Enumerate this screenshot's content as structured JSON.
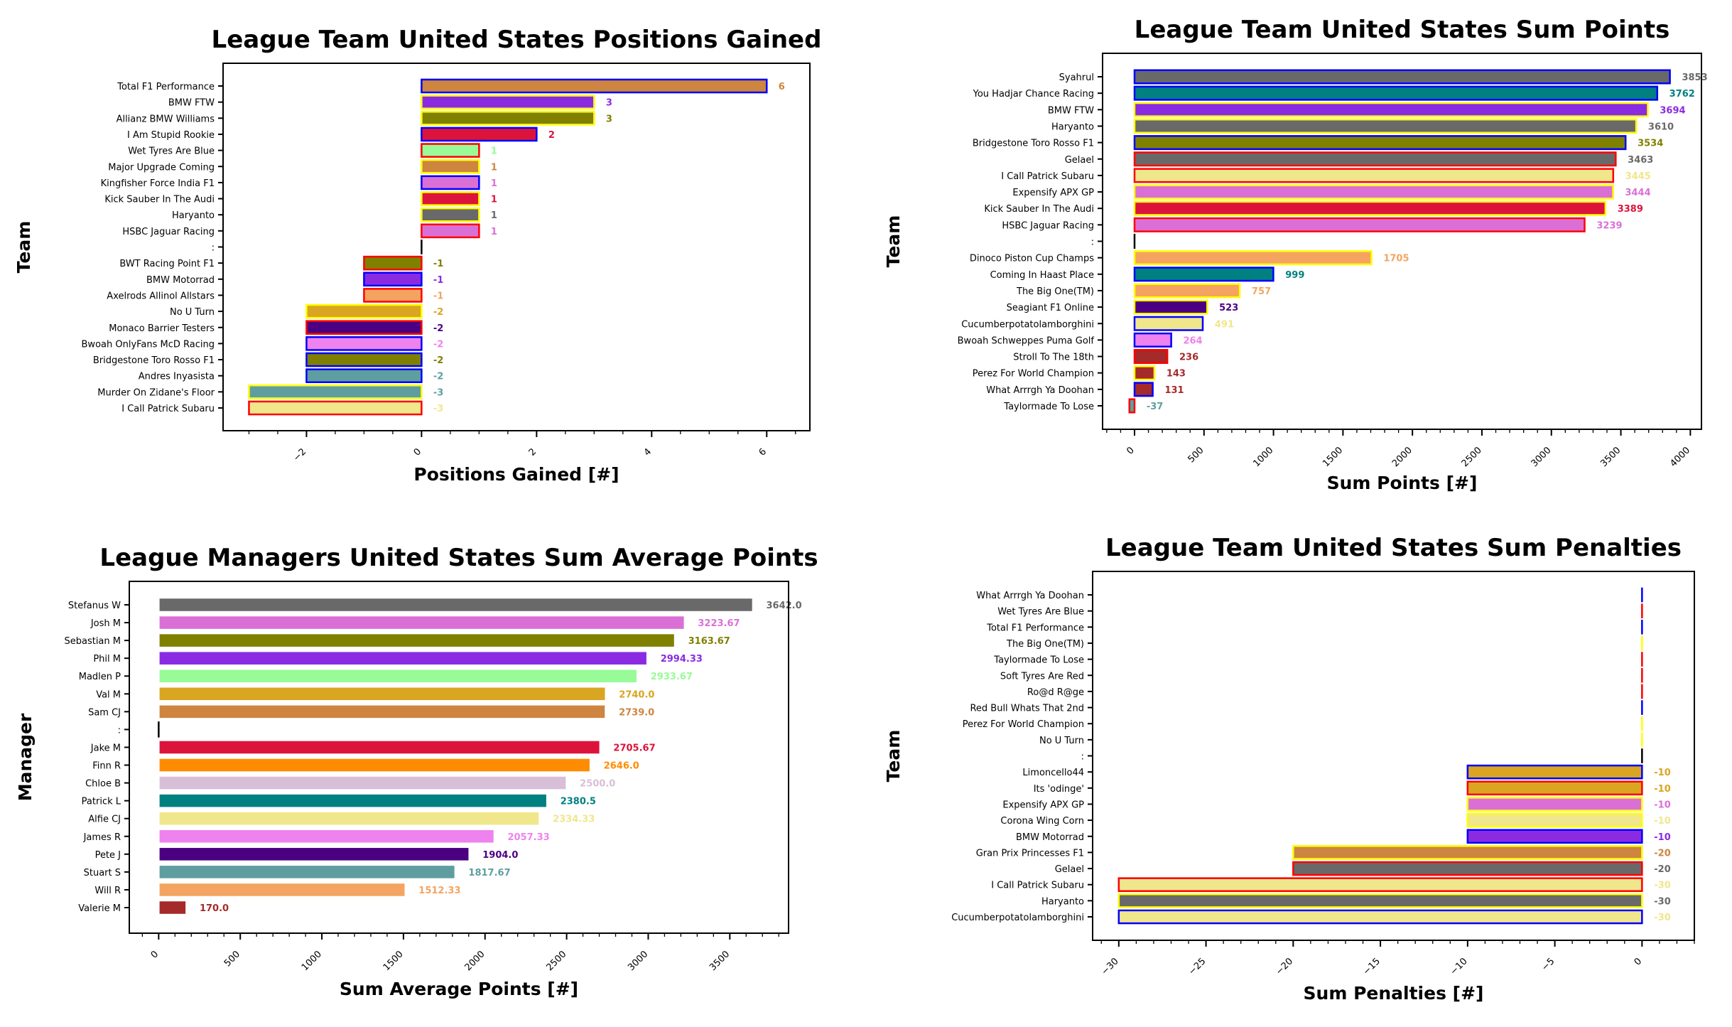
{
  "chart_data": [
    {
      "type": "bar",
      "orientation": "horizontal",
      "title": "League Team United States Positions Gained",
      "xlabel": "Positions Gained [#]",
      "ylabel": "Team",
      "xlim": [
        -3.45,
        6.75
      ],
      "xticks": [
        "−2",
        "0",
        "2",
        "4",
        "6"
      ],
      "xtick_values": [
        -2,
        0,
        2,
        4,
        6
      ],
      "grid": false,
      "categories": [
        "Total F1 Performance",
        "BMW FTW",
        "Allianz BMW Williams",
        "I Am Stupid Rookie",
        "Wet Tyres Are Blue",
        "Major Upgrade Coming",
        "Kingfisher Force India F1",
        "Kick Sauber In The Audi",
        "Haryanto",
        "HSBC Jaguar Racing",
        ":",
        "BWT Racing Point F1",
        "BMW Motorrad",
        "Axelrods Allinol Allstars",
        "No U Turn",
        "Monaco Barrier Testers",
        "Bwoah OnlyFans McD Racing",
        "Bridgestone Toro Rosso F1",
        "Andres Inyasista",
        "Murder On Zidane's Floor",
        "I Call Patrick Subaru"
      ],
      "values": [
        6,
        3,
        3,
        2,
        1,
        1,
        1,
        1,
        1,
        1,
        0,
        -1,
        -1,
        -1,
        -2,
        -2,
        -2,
        -2,
        -2,
        -3,
        -3
      ],
      "value_labels": [
        "6",
        "3",
        "3",
        "2",
        "1",
        "1",
        "1",
        "1",
        "1",
        "1",
        "",
        "-1",
        "-1",
        "-1",
        "-2",
        "-2",
        "-2",
        "-2",
        "-2",
        "-3",
        "-3"
      ],
      "colors": [
        "#cd853f",
        "#8a2be2",
        "#808000",
        "#dc143c",
        "#98fb98",
        "#cd853f",
        "#da70d6",
        "#dc143c",
        "#696969",
        "#da70d6",
        "#000000",
        "#808000",
        "#8a2be2",
        "#f4a460",
        "#daa520",
        "#4b0082",
        "#ee82ee",
        "#808000",
        "#5f9ea0",
        "#5f9ea0",
        "#f0e68c"
      ],
      "edgecolors": [
        "#0000ff",
        "#ffff00",
        "#ffff00",
        "#0000ff",
        "#ff0000",
        "#ffff00",
        "#0000ff",
        "#ffff00",
        "#ffff00",
        "#ff0000",
        "#000000",
        "#ff0000",
        "#0000ff",
        "#ff0000",
        "#ffff00",
        "#ff0000",
        "#0000ff",
        "#0000ff",
        "#0000ff",
        "#ffff00",
        "#ff0000"
      ]
    },
    {
      "type": "bar",
      "orientation": "horizontal",
      "title": "League Team United States Sum Points",
      "xlabel": "Sum Points [#]",
      "ylabel": "Team",
      "xlim": [
        -230,
        4080
      ],
      "xticks": [
        "0",
        "500",
        "1000",
        "1500",
        "2000",
        "2500",
        "3000",
        "3500",
        "4000"
      ],
      "xtick_values": [
        0,
        500,
        1000,
        1500,
        2000,
        2500,
        3000,
        3500,
        4000
      ],
      "grid": false,
      "categories": [
        "Syahrul",
        "You Hadjar Chance Racing",
        "BMW FTW",
        "Haryanto",
        "Bridgestone Toro Rosso F1",
        "Gelael",
        "I Call Patrick Subaru",
        "Expensify APX GP",
        "Kick Sauber In The Audi",
        "HSBC Jaguar Racing",
        ":",
        "Dinoco Piston Cup Champs",
        "Coming In Haast Place",
        "The Big One(TM)",
        "Seagiant F1 Online",
        "Cucumberpotatolamborghini",
        "Bwoah Schweppes Puma Golf",
        "Stroll To The 18th",
        "Perez For World Champion",
        "What Arrrgh Ya Doohan",
        "Taylormade To Lose"
      ],
      "values": [
        3853,
        3762,
        3694,
        3610,
        3534,
        3463,
        3445,
        3444,
        3389,
        3239,
        0,
        1705,
        999,
        757,
        523,
        491,
        264,
        236,
        143,
        131,
        -37
      ],
      "value_labels": [
        "3853",
        "3762",
        "3694",
        "3610",
        "3534",
        "3463",
        "3445",
        "3444",
        "3389",
        "3239",
        "",
        "1705",
        "999",
        "757",
        "523",
        "491",
        "264",
        "236",
        "143",
        "131",
        "-37"
      ],
      "colors": [
        "#696969",
        "#008080",
        "#8a2be2",
        "#696969",
        "#808000",
        "#696969",
        "#f0e68c",
        "#da70d6",
        "#dc143c",
        "#da70d6",
        "#000000",
        "#f4a460",
        "#008080",
        "#f4a460",
        "#4b0082",
        "#f0e68c",
        "#ee82ee",
        "#a52a2a",
        "#a52a2a",
        "#a52a2a",
        "#5f9ea0"
      ],
      "edgecolors": [
        "#0000ff",
        "#0000ff",
        "#ffff00",
        "#ffff00",
        "#0000ff",
        "#ff0000",
        "#ff0000",
        "#ffff00",
        "#ffff00",
        "#ff0000",
        "#000000",
        "#ffff00",
        "#0000ff",
        "#ffff00",
        "#ffff00",
        "#0000ff",
        "#0000ff",
        "#ff0000",
        "#ffff00",
        "#0000ff",
        "#ff0000"
      ]
    },
    {
      "type": "bar",
      "orientation": "horizontal",
      "title": "League Managers United States Sum Average Points",
      "xlabel": "Sum Average Points [#]",
      "ylabel": "Manager",
      "xlim": [
        -180,
        3860
      ],
      "xticks": [
        "0",
        "500",
        "1000",
        "1500",
        "2000",
        "2500",
        "3000",
        "3500"
      ],
      "xtick_values": [
        0,
        500,
        1000,
        1500,
        2000,
        2500,
        3000,
        3500
      ],
      "grid": false,
      "categories": [
        "Stefanus W",
        "Josh M",
        "Sebastian M",
        "Phil M",
        "Madlen P",
        "Val M",
        "Sam CJ",
        ":",
        "Jake M",
        "Finn R",
        "Chloe B",
        "Patrick L",
        "Alfie CJ",
        "James R",
        "Pete J",
        "Stuart S",
        "Will R",
        "Valerie M"
      ],
      "values": [
        3642.0,
        3223.67,
        3163.67,
        2994.33,
        2933.67,
        2740.0,
        2739.0,
        0,
        2705.67,
        2646.0,
        2500.0,
        2380.5,
        2334.33,
        2057.33,
        1904.0,
        1817.67,
        1512.33,
        170.0
      ],
      "value_labels": [
        "3642.0",
        "3223.67",
        "3163.67",
        "2994.33",
        "2933.67",
        "2740.0",
        "2739.0",
        "",
        "2705.67",
        "2646.0",
        "2500.0",
        "2380.5",
        "2334.33",
        "2057.33",
        "1904.0",
        "1817.67",
        "1512.33",
        "170.0"
      ],
      "colors": [
        "#696969",
        "#da70d6",
        "#808000",
        "#8a2be2",
        "#98fb98",
        "#daa520",
        "#cd853f",
        "#000000",
        "#dc143c",
        "#ff8c00",
        "#d8bfd8",
        "#008080",
        "#f0e68c",
        "#ee82ee",
        "#4b0082",
        "#5f9ea0",
        "#f4a460",
        "#a52a2a"
      ],
      "edgecolors": [
        "#ffffff",
        "#ffffff",
        "#ffffff",
        "#ffffff",
        "#ffffff",
        "#ffffff",
        "#ffffff",
        "#000000",
        "#ffffff",
        "#ffffff",
        "#ffffff",
        "#ffffff",
        "#ffffff",
        "#ffffff",
        "#ffffff",
        "#ffffff",
        "#ffffff",
        "#ffffff"
      ]
    },
    {
      "type": "bar",
      "orientation": "horizontal",
      "title": "League Team United States Sum Penalties",
      "xlabel": "Sum Penalties [#]",
      "ylabel": "Team",
      "xlim": [
        -31.5,
        3
      ],
      "xticks": [
        "−30",
        "−25",
        "−20",
        "−15",
        "−10",
        "−5",
        "0"
      ],
      "xtick_values": [
        -30,
        -25,
        -20,
        -15,
        -10,
        -5,
        0
      ],
      "grid": false,
      "categories": [
        "What Arrrgh Ya Doohan",
        "Wet Tyres Are Blue",
        "Total F1 Performance",
        "The Big One(TM)",
        "Taylormade To Lose",
        "Soft Tyres Are Red",
        "Ro@d R@ge",
        "Red Bull Whats That 2nd",
        "Perez For World Champion",
        "No U Turn",
        ":",
        "Limoncello44",
        "Its 'odinge'",
        "Expensify APX GP",
        "Corona Wing Corn",
        "BMW Motorrad",
        "Gran Prix Princesses F1",
        "Gelael",
        "I Call Patrick Subaru",
        "Haryanto",
        "Cucumberpotatolamborghini"
      ],
      "values": [
        0,
        0,
        0,
        0,
        0,
        0,
        0,
        0,
        0,
        0,
        0,
        -10,
        -10,
        -10,
        -10,
        -10,
        -20,
        -20,
        -30,
        -30,
        -30
      ],
      "value_labels": [
        "",
        "",
        "",
        "",
        "",
        "",
        "",
        "",
        "",
        "",
        "",
        "-10",
        "-10",
        "-10",
        "-10",
        "-10",
        "-20",
        "-20",
        "-30",
        "-30",
        "-30"
      ],
      "colors": [
        "#0000ff",
        "#ff0000",
        "#0000ff",
        "#ffff00",
        "#ff0000",
        "#ff0000",
        "#ff0000",
        "#0000ff",
        "#ffff00",
        "#ffff00",
        "#000000",
        "#daa520",
        "#daa520",
        "#da70d6",
        "#f0e68c",
        "#8a2be2",
        "#cd853f",
        "#696969",
        "#f0e68c",
        "#696969",
        "#f0e68c"
      ],
      "edgecolors": [
        "#0000ff",
        "#ff0000",
        "#0000ff",
        "#ffff00",
        "#ff0000",
        "#ff0000",
        "#ff0000",
        "#0000ff",
        "#ffff00",
        "#ffff00",
        "#000000",
        "#0000ff",
        "#ff0000",
        "#ffff00",
        "#ffff00",
        "#0000ff",
        "#ffff00",
        "#ff0000",
        "#ff0000",
        "#ffff00",
        "#0000ff"
      ]
    }
  ]
}
